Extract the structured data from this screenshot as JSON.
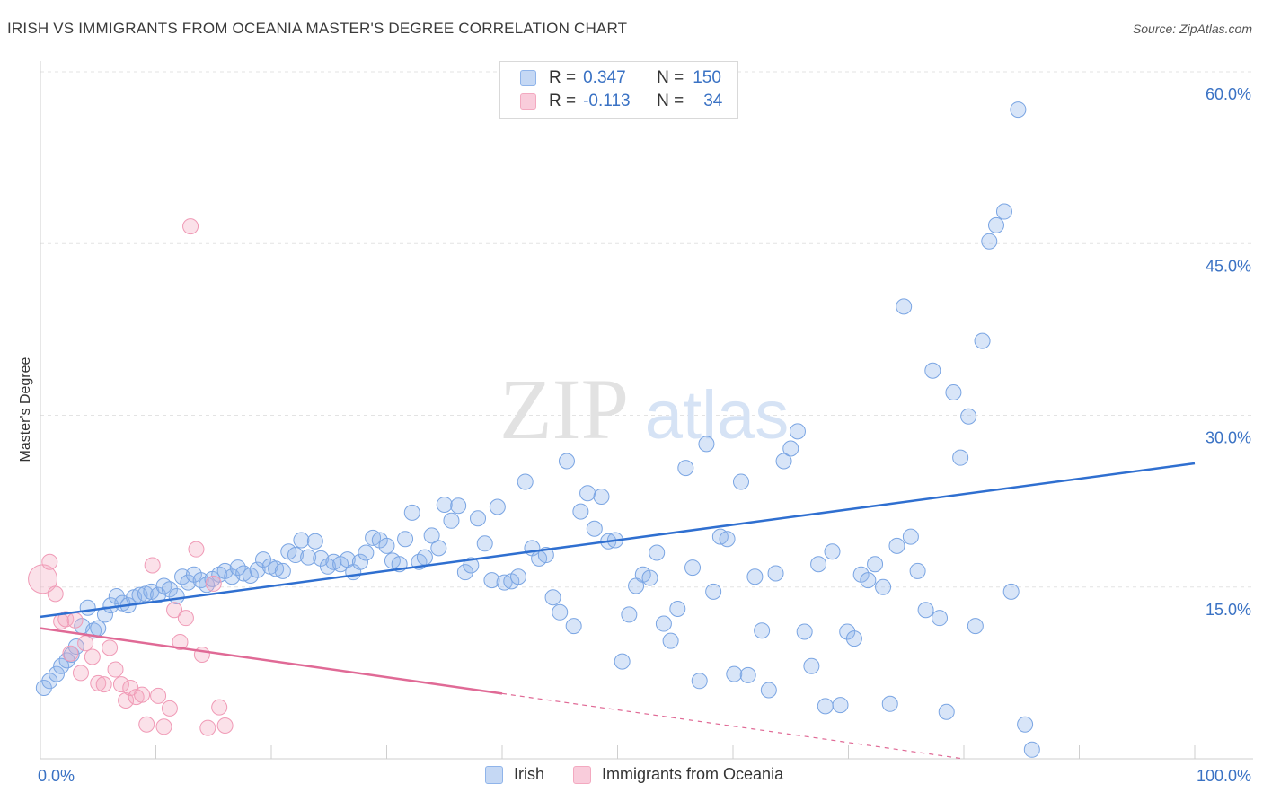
{
  "title": "IRISH VS IMMIGRANTS FROM OCEANIA MASTER'S DEGREE CORRELATION CHART",
  "source": "Source: ZipAtlas.com",
  "watermark": {
    "zip": "ZIP",
    "atlas": "atlas"
  },
  "legend": {
    "rows": [
      {
        "r_label": "R =",
        "r_value": "0.347",
        "n_label": "N =",
        "n_value": "150"
      },
      {
        "r_label": "R =",
        "r_value": "-0.113",
        "n_label": "N =",
        "n_value": "34"
      }
    ]
  },
  "chart_data": {
    "type": "scatter",
    "title": "IRISH VS IMMIGRANTS FROM OCEANIA MASTER'S DEGREE CORRELATION CHART",
    "xlabel": "",
    "ylabel": "Master's Degree",
    "xlim": [
      0,
      100
    ],
    "ylim": [
      0,
      60
    ],
    "x_tick_labels": [
      "0.0%",
      "100.0%"
    ],
    "y_ticks": [
      15,
      30,
      45,
      60
    ],
    "y_tick_labels": [
      "15.0%",
      "30.0%",
      "45.0%",
      "60.0%"
    ],
    "grid": "horizontal dashed",
    "legend_placement": "bottom-center",
    "colors": {
      "irish": "#8fb4ea",
      "irish_line": "#2f6fd0",
      "oceania": "#f3a9c0",
      "oceania_line": "#e06a96",
      "tick_label": "#3a72c4"
    },
    "series": [
      {
        "name": "Irish",
        "trend": {
          "x": [
            0,
            100
          ],
          "y": [
            12.4,
            25.8
          ]
        },
        "points": [
          [
            0.3,
            6.2
          ],
          [
            0.8,
            6.8
          ],
          [
            1.4,
            7.4
          ],
          [
            1.8,
            8.1
          ],
          [
            2.3,
            8.6
          ],
          [
            2.7,
            9.1
          ],
          [
            3.1,
            9.8
          ],
          [
            3.6,
            11.6
          ],
          [
            4.1,
            13.2
          ],
          [
            4.6,
            11.2
          ],
          [
            5.0,
            11.4
          ],
          [
            5.6,
            12.6
          ],
          [
            6.1,
            13.4
          ],
          [
            6.6,
            14.2
          ],
          [
            7.1,
            13.6
          ],
          [
            7.6,
            13.4
          ],
          [
            8.1,
            14.1
          ],
          [
            8.6,
            14.3
          ],
          [
            9.1,
            14.4
          ],
          [
            9.6,
            14.6
          ],
          [
            10.2,
            14.3
          ],
          [
            10.7,
            15.1
          ],
          [
            11.2,
            14.8
          ],
          [
            11.8,
            14.2
          ],
          [
            12.3,
            15.9
          ],
          [
            12.8,
            15.4
          ],
          [
            13.3,
            16.1
          ],
          [
            13.9,
            15.6
          ],
          [
            14.4,
            15.2
          ],
          [
            14.9,
            15.7
          ],
          [
            15.5,
            16.1
          ],
          [
            16.0,
            16.4
          ],
          [
            16.6,
            15.9
          ],
          [
            17.1,
            16.7
          ],
          [
            17.6,
            16.2
          ],
          [
            18.2,
            16.0
          ],
          [
            18.8,
            16.5
          ],
          [
            19.3,
            17.4
          ],
          [
            19.9,
            16.8
          ],
          [
            20.4,
            16.6
          ],
          [
            21.0,
            16.4
          ],
          [
            21.5,
            18.1
          ],
          [
            22.1,
            17.8
          ],
          [
            22.6,
            19.1
          ],
          [
            23.2,
            17.6
          ],
          [
            23.8,
            19.0
          ],
          [
            24.3,
            17.5
          ],
          [
            24.9,
            16.8
          ],
          [
            25.4,
            17.2
          ],
          [
            26.0,
            17.0
          ],
          [
            26.6,
            17.4
          ],
          [
            27.1,
            16.3
          ],
          [
            27.7,
            17.2
          ],
          [
            28.2,
            18.0
          ],
          [
            28.8,
            19.3
          ],
          [
            29.4,
            19.1
          ],
          [
            30.0,
            18.6
          ],
          [
            30.5,
            17.3
          ],
          [
            31.1,
            17.0
          ],
          [
            31.6,
            19.2
          ],
          [
            32.2,
            21.5
          ],
          [
            32.8,
            17.2
          ],
          [
            33.3,
            17.6
          ],
          [
            33.9,
            19.5
          ],
          [
            34.5,
            18.4
          ],
          [
            35.0,
            22.2
          ],
          [
            35.6,
            20.8
          ],
          [
            36.2,
            22.1
          ],
          [
            36.8,
            16.3
          ],
          [
            37.3,
            16.9
          ],
          [
            37.9,
            21.0
          ],
          [
            38.5,
            18.8
          ],
          [
            39.1,
            15.6
          ],
          [
            39.6,
            22.0
          ],
          [
            40.2,
            15.4
          ],
          [
            40.8,
            15.5
          ],
          [
            41.4,
            15.9
          ],
          [
            42.0,
            24.2
          ],
          [
            42.6,
            18.4
          ],
          [
            43.2,
            17.5
          ],
          [
            43.8,
            17.8
          ],
          [
            44.4,
            14.1
          ],
          [
            45.0,
            12.8
          ],
          [
            45.6,
            26.0
          ],
          [
            46.2,
            11.6
          ],
          [
            46.8,
            21.6
          ],
          [
            47.4,
            23.2
          ],
          [
            48.0,
            20.1
          ],
          [
            48.6,
            22.9
          ],
          [
            49.2,
            19.0
          ],
          [
            49.8,
            19.1
          ],
          [
            50.4,
            8.5
          ],
          [
            51.0,
            12.6
          ],
          [
            51.6,
            15.1
          ],
          [
            52.2,
            16.1
          ],
          [
            52.8,
            15.8
          ],
          [
            53.4,
            18.0
          ],
          [
            54.0,
            11.8
          ],
          [
            54.6,
            10.3
          ],
          [
            55.2,
            13.1
          ],
          [
            55.9,
            25.4
          ],
          [
            56.5,
            16.7
          ],
          [
            57.1,
            6.8
          ],
          [
            57.7,
            27.5
          ],
          [
            58.3,
            14.6
          ],
          [
            58.9,
            19.4
          ],
          [
            59.5,
            19.2
          ],
          [
            60.1,
            7.4
          ],
          [
            60.7,
            24.2
          ],
          [
            61.3,
            7.3
          ],
          [
            61.9,
            15.9
          ],
          [
            62.5,
            11.2
          ],
          [
            63.1,
            6.0
          ],
          [
            63.7,
            16.2
          ],
          [
            64.4,
            26.0
          ],
          [
            65.0,
            27.1
          ],
          [
            65.6,
            28.6
          ],
          [
            66.2,
            11.1
          ],
          [
            66.8,
            8.1
          ],
          [
            67.4,
            17.0
          ],
          [
            68.0,
            4.6
          ],
          [
            68.6,
            18.1
          ],
          [
            69.3,
            4.7
          ],
          [
            69.9,
            11.1
          ],
          [
            70.5,
            10.5
          ],
          [
            71.1,
            16.1
          ],
          [
            71.7,
            15.6
          ],
          [
            72.3,
            17.0
          ],
          [
            73.0,
            15.0
          ],
          [
            73.6,
            4.8
          ],
          [
            74.2,
            18.6
          ],
          [
            74.8,
            39.5
          ],
          [
            75.4,
            19.4
          ],
          [
            76.0,
            16.4
          ],
          [
            76.7,
            13.0
          ],
          [
            77.3,
            33.9
          ],
          [
            77.9,
            12.3
          ],
          [
            78.5,
            4.1
          ],
          [
            79.1,
            32.0
          ],
          [
            79.7,
            26.3
          ],
          [
            80.4,
            29.9
          ],
          [
            81.0,
            11.6
          ],
          [
            81.6,
            36.5
          ],
          [
            82.2,
            45.2
          ],
          [
            82.8,
            46.6
          ],
          [
            83.5,
            47.8
          ],
          [
            84.1,
            14.6
          ],
          [
            84.7,
            56.7
          ],
          [
            85.3,
            3.0
          ],
          [
            85.9,
            0.8
          ]
        ]
      },
      {
        "name": "Immigrants from Oceania",
        "trend": {
          "x": [
            0,
            40
          ],
          "y": [
            11.4,
            5.7
          ]
        },
        "trend_extension": {
          "x": [
            40,
            80
          ],
          "y": [
            5.7,
            0.0
          ]
        },
        "points": [
          [
            0.2,
            15.7
          ],
          [
            0.8,
            17.2
          ],
          [
            1.3,
            14.4
          ],
          [
            1.8,
            12.0
          ],
          [
            2.2,
            12.2
          ],
          [
            2.6,
            9.2
          ],
          [
            3.0,
            12.1
          ],
          [
            3.5,
            7.5
          ],
          [
            3.9,
            10.1
          ],
          [
            4.5,
            8.9
          ],
          [
            5.0,
            6.6
          ],
          [
            5.5,
            6.5
          ],
          [
            6.0,
            9.7
          ],
          [
            6.5,
            7.8
          ],
          [
            7.0,
            6.5
          ],
          [
            7.4,
            5.1
          ],
          [
            7.8,
            6.2
          ],
          [
            8.3,
            5.4
          ],
          [
            8.8,
            5.6
          ],
          [
            9.2,
            3.0
          ],
          [
            9.7,
            16.9
          ],
          [
            10.2,
            5.5
          ],
          [
            10.7,
            2.8
          ],
          [
            11.2,
            4.4
          ],
          [
            11.6,
            13.0
          ],
          [
            12.1,
            10.2
          ],
          [
            12.6,
            12.3
          ],
          [
            13.0,
            46.5
          ],
          [
            13.5,
            18.3
          ],
          [
            14.0,
            9.1
          ],
          [
            14.5,
            2.7
          ],
          [
            15.0,
            15.3
          ],
          [
            15.5,
            4.5
          ],
          [
            16.0,
            2.9
          ]
        ]
      }
    ]
  }
}
